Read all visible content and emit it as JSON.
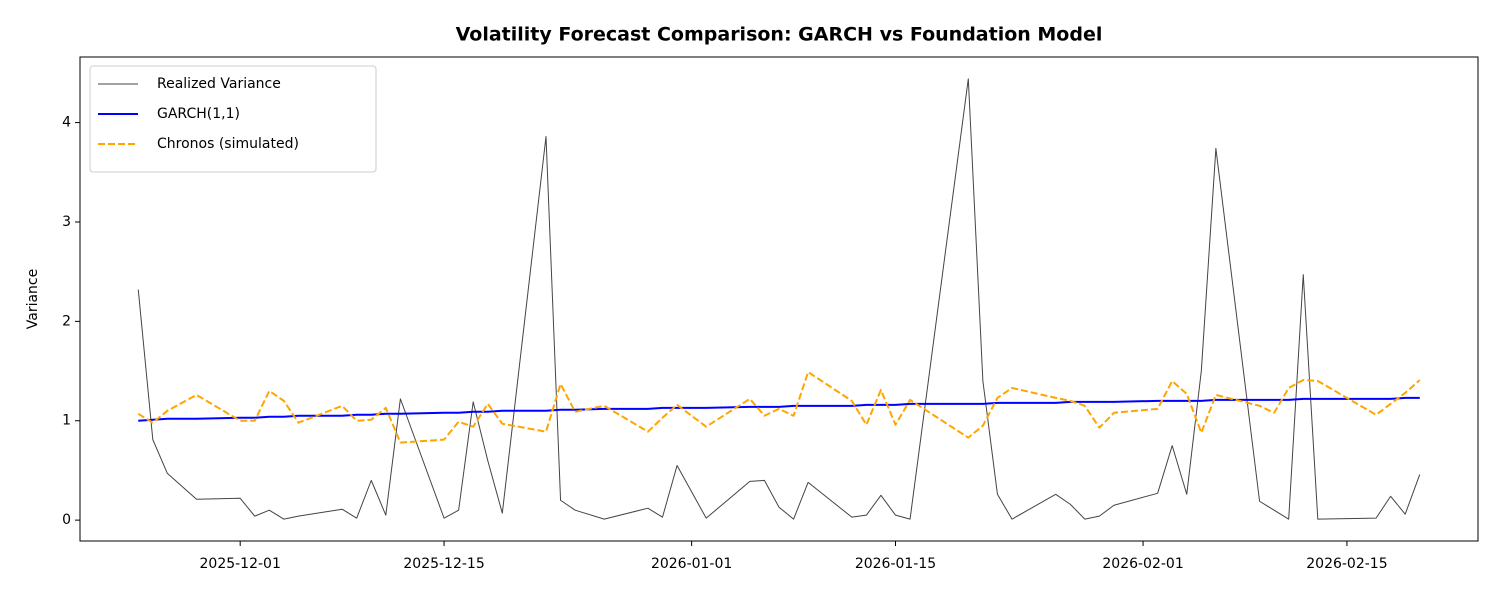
{
  "chart_data": {
    "type": "line",
    "title": "Volatility Forecast Comparison: GARCH vs Foundation Model",
    "y_label": "Variance",
    "x": [
      "2025-11-24",
      "2025-11-25",
      "2025-11-26",
      "2025-11-28",
      "2025-12-01",
      "2025-12-02",
      "2025-12-03",
      "2025-12-04",
      "2025-12-05",
      "2025-12-08",
      "2025-12-09",
      "2025-12-10",
      "2025-12-11",
      "2025-12-12",
      "2025-12-15",
      "2025-12-16",
      "2025-12-17",
      "2025-12-18",
      "2025-12-19",
      "2025-12-22",
      "2025-12-23",
      "2025-12-24",
      "2025-12-26",
      "2025-12-29",
      "2025-12-30",
      "2025-12-31",
      "2026-01-02",
      "2026-01-05",
      "2026-01-06",
      "2026-01-07",
      "2026-01-08",
      "2026-01-09",
      "2026-01-12",
      "2026-01-13",
      "2026-01-14",
      "2026-01-15",
      "2026-01-16",
      "2026-01-20",
      "2026-01-21",
      "2026-01-22",
      "2026-01-23",
      "2026-01-26",
      "2026-01-27",
      "2026-01-28",
      "2026-01-29",
      "2026-01-30",
      "2026-02-02",
      "2026-02-03",
      "2026-02-04",
      "2026-02-05",
      "2026-02-06",
      "2026-02-09",
      "2026-02-10",
      "2026-02-11",
      "2026-02-12",
      "2026-02-13",
      "2026-02-17",
      "2026-02-18",
      "2026-02-19",
      "2026-02-20"
    ],
    "series": [
      {
        "name": "Realized Variance",
        "color": "#444444",
        "width": 1,
        "dash": false,
        "values": [
          2.32,
          0.81,
          0.47,
          0.21,
          0.22,
          0.04,
          0.1,
          0.01,
          0.04,
          0.11,
          0.02,
          0.4,
          0.05,
          1.22,
          0.02,
          0.1,
          1.19,
          0.6,
          0.07,
          3.86,
          0.2,
          0.1,
          0.01,
          0.12,
          0.03,
          0.55,
          0.02,
          0.39,
          0.4,
          0.13,
          0.01,
          0.38,
          0.03,
          0.05,
          0.25,
          0.05,
          0.01,
          4.44,
          1.4,
          0.26,
          0.01,
          0.26,
          0.16,
          0.01,
          0.04,
          0.15,
          0.27,
          0.75,
          0.26,
          1.5,
          3.74,
          0.19,
          0.1,
          0.01,
          2.47,
          0.01,
          0.02,
          0.24,
          0.06,
          0.46
        ]
      },
      {
        "name": "GARCH(1,1)",
        "color": "#0000ff",
        "width": 2,
        "dash": false,
        "values": [
          1.0,
          1.01,
          1.02,
          1.02,
          1.03,
          1.03,
          1.04,
          1.04,
          1.05,
          1.05,
          1.06,
          1.06,
          1.07,
          1.07,
          1.08,
          1.08,
          1.09,
          1.09,
          1.1,
          1.1,
          1.11,
          1.11,
          1.12,
          1.12,
          1.13,
          1.13,
          1.13,
          1.14,
          1.14,
          1.14,
          1.15,
          1.15,
          1.15,
          1.16,
          1.16,
          1.16,
          1.17,
          1.17,
          1.17,
          1.18,
          1.18,
          1.18,
          1.19,
          1.19,
          1.19,
          1.19,
          1.2,
          1.2,
          1.2,
          1.2,
          1.21,
          1.21,
          1.21,
          1.21,
          1.22,
          1.22,
          1.22,
          1.22,
          1.23,
          1.23
        ]
      },
      {
        "name": "Chronos (simulated)",
        "color": "#ffa500",
        "width": 2,
        "dash": true,
        "values": [
          1.07,
          0.98,
          1.1,
          1.26,
          1.0,
          1.0,
          1.3,
          1.2,
          0.98,
          1.15,
          1.0,
          1.01,
          1.13,
          0.78,
          0.81,
          0.99,
          0.94,
          1.17,
          0.97,
          0.89,
          1.37,
          1.09,
          1.15,
          0.89,
          1.03,
          1.16,
          0.94,
          1.22,
          1.05,
          1.12,
          1.05,
          1.49,
          1.2,
          0.96,
          1.31,
          0.96,
          1.21,
          0.83,
          0.95,
          1.23,
          1.33,
          1.23,
          1.2,
          1.15,
          0.93,
          1.08,
          1.12,
          1.4,
          1.27,
          0.88,
          1.26,
          1.15,
          1.08,
          1.33,
          1.41,
          1.4,
          1.06,
          1.17,
          1.28,
          1.41
        ]
      }
    ],
    "xlim": [
      "2025-11-20",
      "2026-02-24"
    ],
    "xticks": [
      "2025-12-01",
      "2025-12-15",
      "2026-01-01",
      "2026-01-15",
      "2026-02-01",
      "2026-02-15"
    ],
    "ylim": [
      -0.21,
      4.66
    ],
    "yticks": [
      0,
      1,
      2,
      3,
      4
    ],
    "grid": false,
    "legend": "upper left"
  }
}
